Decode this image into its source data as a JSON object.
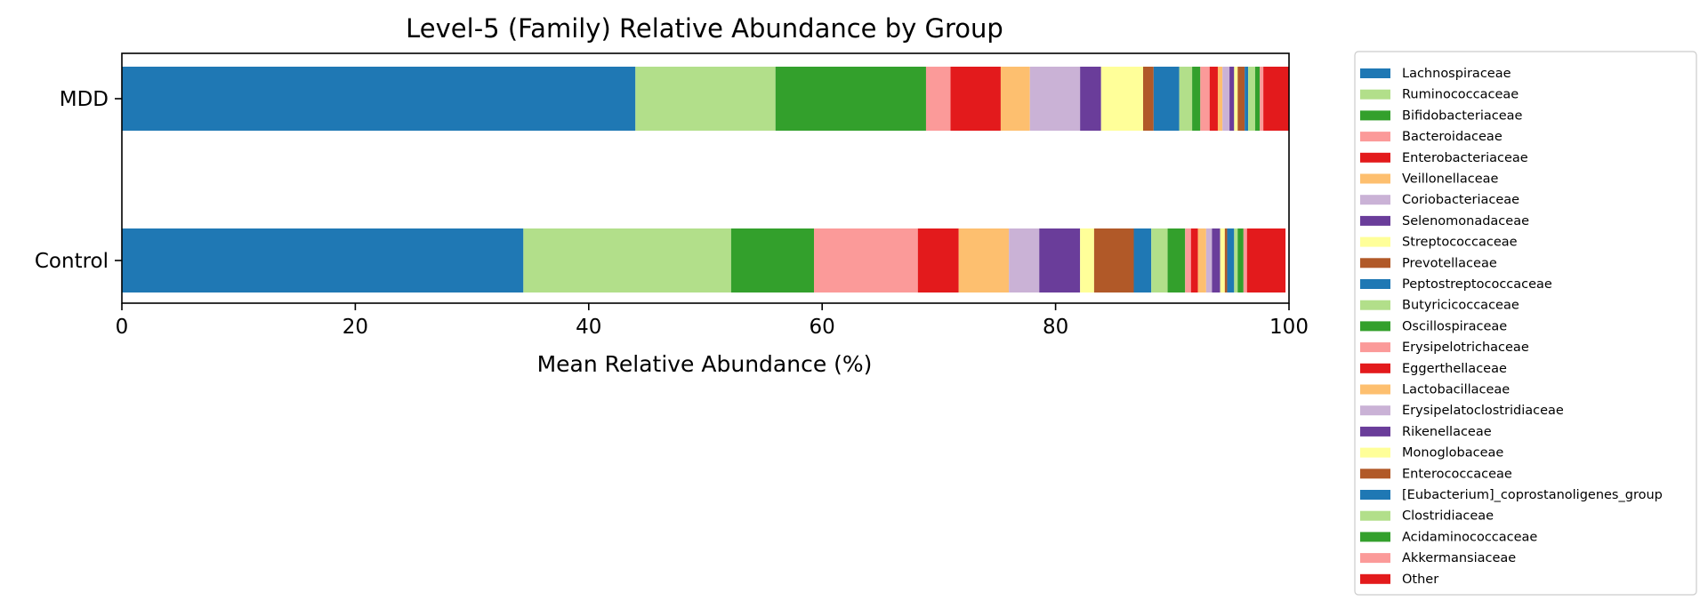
{
  "chart_data": {
    "type": "bar",
    "orientation": "horizontal",
    "stacked": true,
    "title": "Level-5 (Family) Relative Abundance by Group",
    "xlabel": "Mean Relative Abundance (%)",
    "ylabel": "",
    "xlim": [
      0,
      100
    ],
    "xticks": [
      "0",
      "20",
      "40",
      "60",
      "80",
      "100"
    ],
    "categories": [
      "MDD",
      "Control"
    ],
    "grid": false,
    "legend_position": "outside-right",
    "series": [
      {
        "name": "Lachnospiraceae",
        "color": "#1f78b4",
        "values": [
          44.0,
          34.4
        ]
      },
      {
        "name": "Ruminococcaceae",
        "color": "#b2df8a",
        "values": [
          12.0,
          17.8
        ]
      },
      {
        "name": "Bifidobacteriaceae",
        "color": "#33a02c",
        "values": [
          12.9,
          7.1
        ]
      },
      {
        "name": "Bacteroidaceae",
        "color": "#fb9a99",
        "values": [
          2.1,
          8.9
        ]
      },
      {
        "name": "Enterobacteriaceae",
        "color": "#e31a1c",
        "values": [
          4.3,
          3.5
        ]
      },
      {
        "name": "Veillonellaceae",
        "color": "#fdbf6f",
        "values": [
          2.5,
          4.3
        ]
      },
      {
        "name": "Coriobacteriaceae",
        "color": "#cab2d6",
        "values": [
          4.3,
          2.6
        ]
      },
      {
        "name": "Selenomonadaceae",
        "color": "#6a3d9a",
        "values": [
          1.8,
          3.5
        ]
      },
      {
        "name": "Streptococcaceae",
        "color": "#ffff99",
        "values": [
          3.6,
          1.2
        ]
      },
      {
        "name": "Prevotellaceae",
        "color": "#b15928",
        "values": [
          0.9,
          3.4
        ]
      },
      {
        "name": "Peptostreptococcaceae",
        "color": "#1f78b4",
        "values": [
          2.2,
          1.5
        ]
      },
      {
        "name": "Butyricicoccaceae",
        "color": "#b2df8a",
        "values": [
          1.1,
          1.4
        ]
      },
      {
        "name": "Oscillospiraceae",
        "color": "#33a02c",
        "values": [
          0.7,
          1.5
        ]
      },
      {
        "name": "Erysipelotrichaceae",
        "color": "#fb9a99",
        "values": [
          0.8,
          0.5
        ]
      },
      {
        "name": "Eggerthellaceae",
        "color": "#e31a1c",
        "values": [
          0.7,
          0.6
        ]
      },
      {
        "name": "Lactobacillaceae",
        "color": "#fdbf6f",
        "values": [
          0.4,
          0.7
        ]
      },
      {
        "name": "Erysipelatoclostridiaceae",
        "color": "#cab2d6",
        "values": [
          0.6,
          0.5
        ]
      },
      {
        "name": "Rikenellaceae",
        "color": "#6a3d9a",
        "values": [
          0.4,
          0.7
        ]
      },
      {
        "name": "Monoglobaceae",
        "color": "#ffff99",
        "values": [
          0.3,
          0.4
        ]
      },
      {
        "name": "Enterococcaceae",
        "color": "#b15928",
        "values": [
          0.6,
          0.2
        ]
      },
      {
        "name": "[Eubacterium]_coprostanoligenes_group",
        "color": "#1f78b4",
        "values": [
          0.3,
          0.6
        ]
      },
      {
        "name": "Clostridiaceae",
        "color": "#b2df8a",
        "values": [
          0.6,
          0.3
        ]
      },
      {
        "name": "Acidaminococcaceae",
        "color": "#33a02c",
        "values": [
          0.4,
          0.5
        ]
      },
      {
        "name": "Akkermansiaceae",
        "color": "#fb9a99",
        "values": [
          0.3,
          0.3
        ]
      },
      {
        "name": "Other",
        "color": "#e31a1c",
        "values": [
          2.2,
          3.3
        ]
      }
    ]
  }
}
